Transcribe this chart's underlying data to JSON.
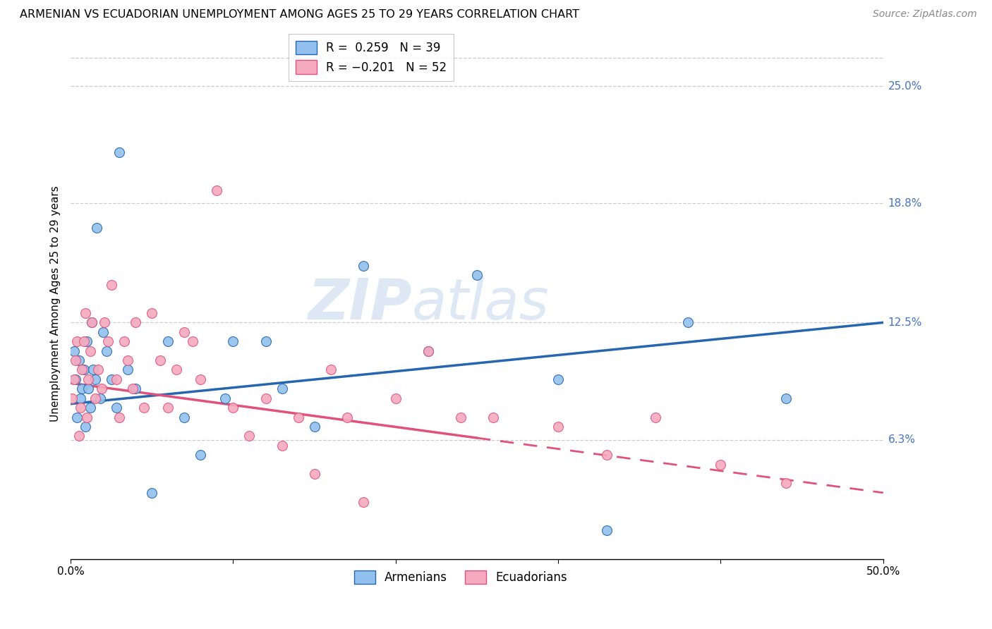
{
  "title": "ARMENIAN VS ECUADORIAN UNEMPLOYMENT AMONG AGES 25 TO 29 YEARS CORRELATION CHART",
  "source": "Source: ZipAtlas.com",
  "ylabel": "Unemployment Among Ages 25 to 29 years",
  "ytick_labels": [
    "6.3%",
    "12.5%",
    "18.8%",
    "25.0%"
  ],
  "ytick_values": [
    6.3,
    12.5,
    18.8,
    25.0
  ],
  "xlim": [
    0.0,
    50.0
  ],
  "ylim": [
    0.0,
    27.0
  ],
  "armenian_color": "#92C0EE",
  "armenian_color_line": "#2566AE",
  "ecuadorian_color": "#F5AABF",
  "ecuadorian_color_line": "#E0527A",
  "legend_armenian_R": "R =  0.259",
  "legend_armenian_N": "N = 39",
  "legend_ecuadorian_R": "R = -0.201",
  "legend_ecuadorian_N": "N = 52",
  "watermark_zip": "ZIP",
  "watermark_atlas": "atlas",
  "ecu_solid_end": 25.0,
  "arm_line_x0": 0.0,
  "arm_line_y0": 8.2,
  "arm_line_x1": 50.0,
  "arm_line_y1": 12.5,
  "ecu_line_x0": 0.0,
  "ecu_line_y0": 9.3,
  "ecu_line_x1": 50.0,
  "ecu_line_y1": 3.5,
  "armenian_x": [
    0.2,
    0.3,
    0.4,
    0.5,
    0.6,
    0.7,
    0.8,
    0.9,
    1.0,
    1.1,
    1.2,
    1.3,
    1.4,
    1.5,
    1.6,
    1.8,
    2.0,
    2.2,
    2.5,
    2.8,
    3.0,
    3.5,
    4.0,
    5.0,
    6.0,
    7.0,
    8.0,
    9.5,
    10.0,
    12.0,
    13.0,
    15.0,
    18.0,
    22.0,
    25.0,
    30.0,
    33.0,
    38.0,
    44.0
  ],
  "armenian_y": [
    11.0,
    9.5,
    7.5,
    10.5,
    8.5,
    9.0,
    10.0,
    7.0,
    11.5,
    9.0,
    8.0,
    12.5,
    10.0,
    9.5,
    17.5,
    8.5,
    12.0,
    11.0,
    9.5,
    8.0,
    21.5,
    10.0,
    9.0,
    3.5,
    11.5,
    7.5,
    5.5,
    8.5,
    11.5,
    11.5,
    9.0,
    7.0,
    15.5,
    11.0,
    15.0,
    9.5,
    1.5,
    12.5,
    8.5
  ],
  "ecuadorian_x": [
    0.1,
    0.2,
    0.3,
    0.4,
    0.5,
    0.6,
    0.7,
    0.8,
    0.9,
    1.0,
    1.1,
    1.2,
    1.3,
    1.5,
    1.7,
    1.9,
    2.1,
    2.3,
    2.5,
    2.8,
    3.0,
    3.3,
    3.5,
    3.8,
    4.0,
    4.5,
    5.0,
    5.5,
    6.0,
    6.5,
    7.0,
    7.5,
    8.0,
    9.0,
    10.0,
    11.0,
    12.0,
    13.0,
    14.0,
    15.0,
    16.0,
    17.0,
    18.0,
    20.0,
    22.0,
    24.0,
    26.0,
    30.0,
    33.0,
    36.0,
    40.0,
    44.0
  ],
  "ecuadorian_y": [
    8.5,
    9.5,
    10.5,
    11.5,
    6.5,
    8.0,
    10.0,
    11.5,
    13.0,
    7.5,
    9.5,
    11.0,
    12.5,
    8.5,
    10.0,
    9.0,
    12.5,
    11.5,
    14.5,
    9.5,
    7.5,
    11.5,
    10.5,
    9.0,
    12.5,
    8.0,
    13.0,
    10.5,
    8.0,
    10.0,
    12.0,
    11.5,
    9.5,
    19.5,
    8.0,
    6.5,
    8.5,
    6.0,
    7.5,
    4.5,
    10.0,
    7.5,
    3.0,
    8.5,
    11.0,
    7.5,
    7.5,
    7.0,
    5.5,
    7.5,
    5.0,
    4.0
  ]
}
